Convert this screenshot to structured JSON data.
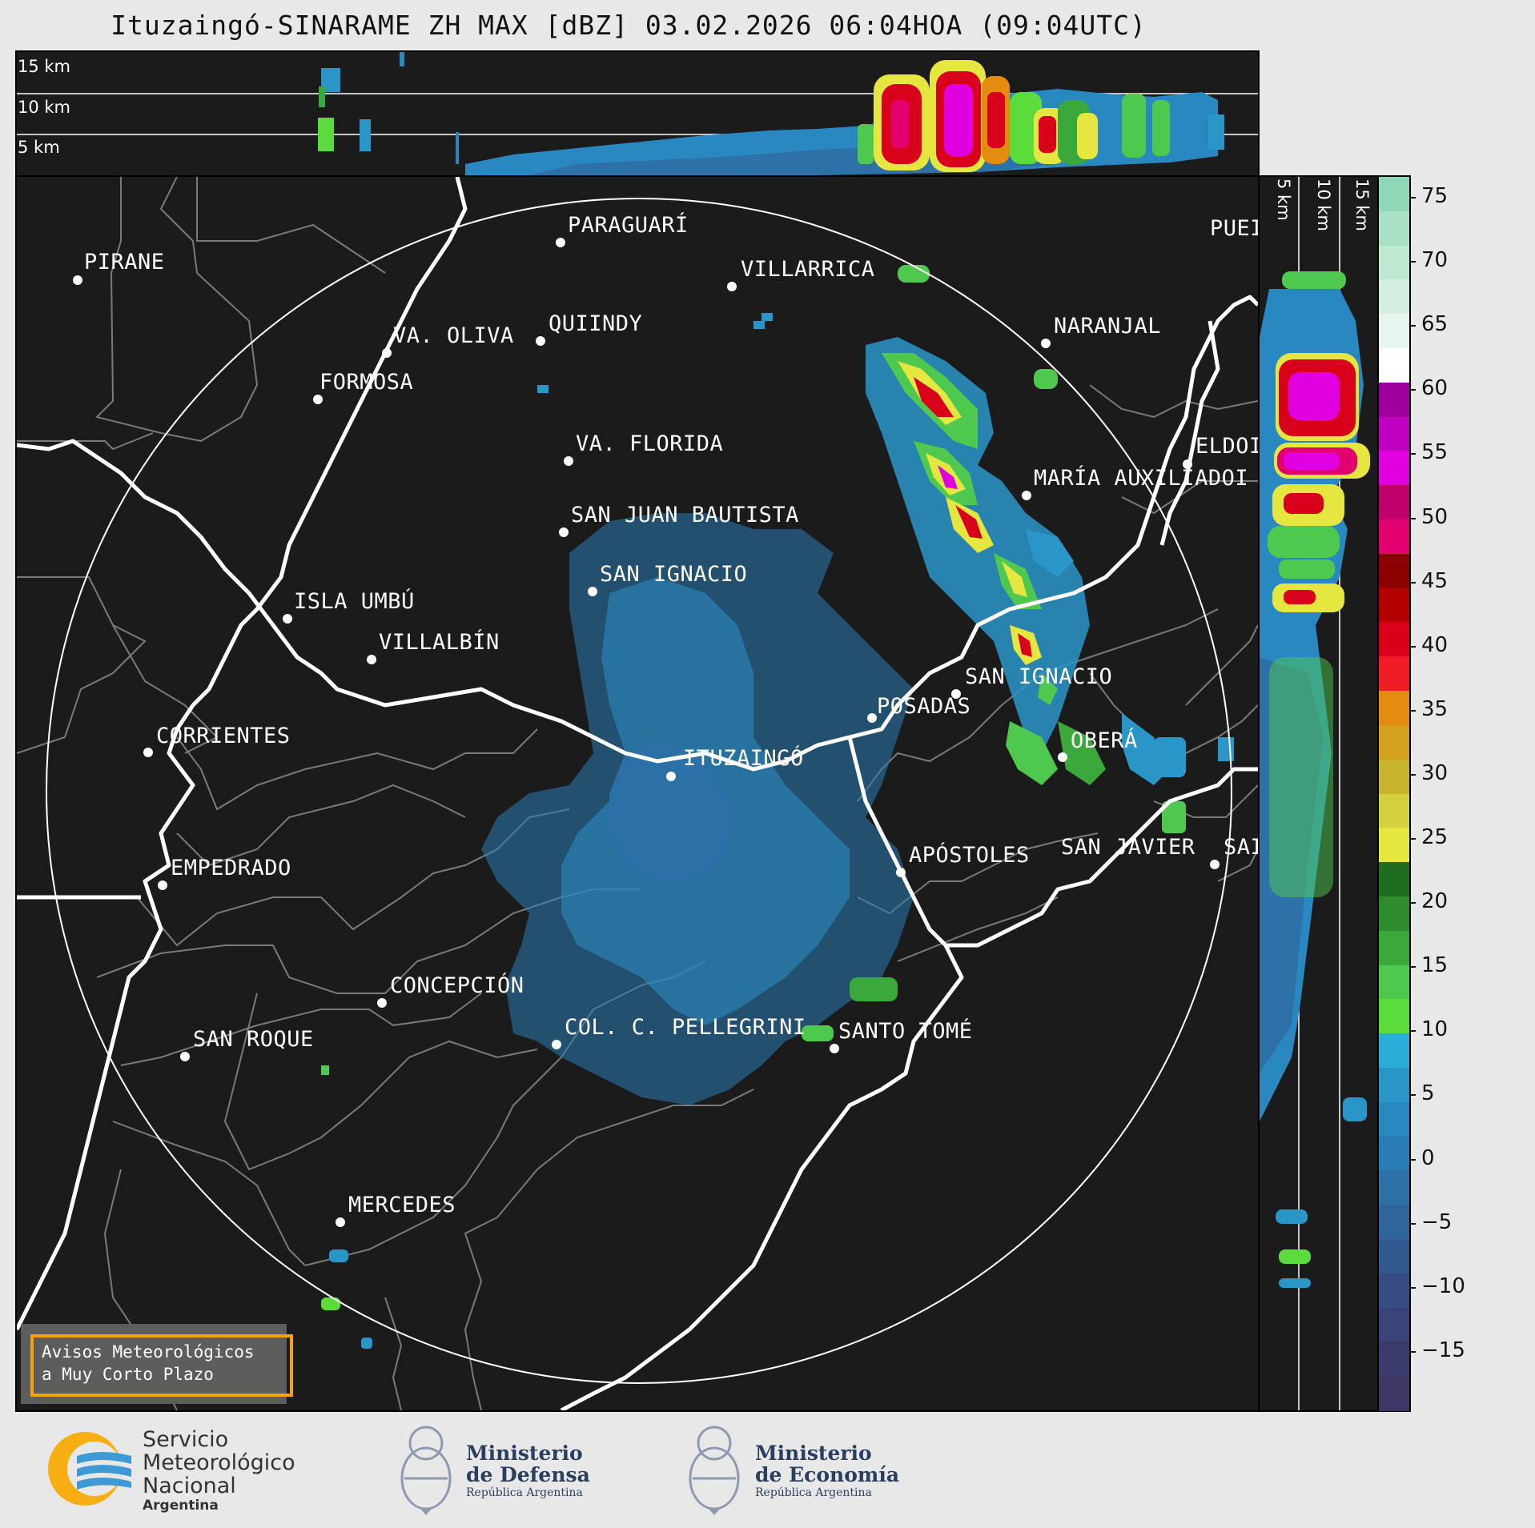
{
  "title": "Ituzaingó-SINARAME ZH MAX [dBZ] 03.02.2026 06:04HOA (09:04UTC)",
  "top_panel": {
    "altitudes": [
      "15 km",
      "10 km",
      "5 km"
    ]
  },
  "side_panel": {
    "altitudes": [
      "5 km",
      "10 km",
      "15 km"
    ]
  },
  "cities": [
    {
      "name": "PIRANE"
    },
    {
      "name": "PARAGUARÍ"
    },
    {
      "name": "VILLARRICA"
    },
    {
      "name": "VA. OLIVA"
    },
    {
      "name": "QUIINDY"
    },
    {
      "name": "FORMOSA"
    },
    {
      "name": "NARANJAL"
    },
    {
      "name": "PUEI"
    },
    {
      "name": "VA. FLORIDA"
    },
    {
      "name": "ELDOI"
    },
    {
      "name": "MARÍA AUXILIADOI"
    },
    {
      "name": "SAN JUAN BAUTISTA"
    },
    {
      "name": "SAN IGNACIO"
    },
    {
      "name": "ISLA UMBÚ"
    },
    {
      "name": "VILLALBÍN"
    },
    {
      "name": "SAN IGNACIO"
    },
    {
      "name": "POSADAS"
    },
    {
      "name": "CORRIENTES"
    },
    {
      "name": "ITUZAINGÓ"
    },
    {
      "name": "OBERÁ"
    },
    {
      "name": "APÓSTOLES"
    },
    {
      "name": "SAN JAVIER"
    },
    {
      "name": "SAI"
    },
    {
      "name": "EMPEDRADO"
    },
    {
      "name": "CONCEPCIÓN"
    },
    {
      "name": "COL. C. PELLEGRINI"
    },
    {
      "name": "SANTO TOMÉ"
    },
    {
      "name": "SAN ROQUE"
    },
    {
      "name": "MERCEDES"
    }
  ],
  "colorbar": {
    "ticks": [
      "75",
      "70",
      "65",
      "60",
      "55",
      "50",
      "45",
      "40",
      "35",
      "30",
      "25",
      "20",
      "15",
      "10",
      "5",
      "0",
      "−5",
      "−10",
      "−15"
    ],
    "colors": [
      "#8fd7b7",
      "#a9e0c6",
      "#bfe8d3",
      "#d3eee1",
      "#e6f5ee",
      "#ffffff",
      "#a000a0",
      "#c000c0",
      "#e000e0",
      "#c0006a",
      "#e2006e",
      "#8b0000",
      "#b40000",
      "#d8001a",
      "#f01c28",
      "#e38c10",
      "#d4a020",
      "#c9b430",
      "#d4d040",
      "#e6e640",
      "#1f6d1f",
      "#2e8b2e",
      "#3aa83a",
      "#4fc84f",
      "#5cdc3c",
      "#2aaed8",
      "#2a96c8",
      "#2a88c0",
      "#2a7cb4",
      "#2e70a8",
      "#32649c",
      "#345890",
      "#384c84",
      "#3a4478",
      "#3c3c6c",
      "#3e3664"
    ]
  },
  "warning": {
    "line1": "Avisos Meteorológicos",
    "line2": "a Muy Corto Plazo"
  },
  "logos": {
    "smn": {
      "line1": "Servicio",
      "line2": "Meteorológico",
      "line3": "Nacional",
      "line4": "Argentina"
    },
    "defensa": {
      "line1": "Ministerio",
      "line2": "de Defensa",
      "line3": "República Argentina"
    },
    "economia": {
      "line1": "Ministerio",
      "line2": "de Economía",
      "line3": "República Argentina"
    }
  }
}
